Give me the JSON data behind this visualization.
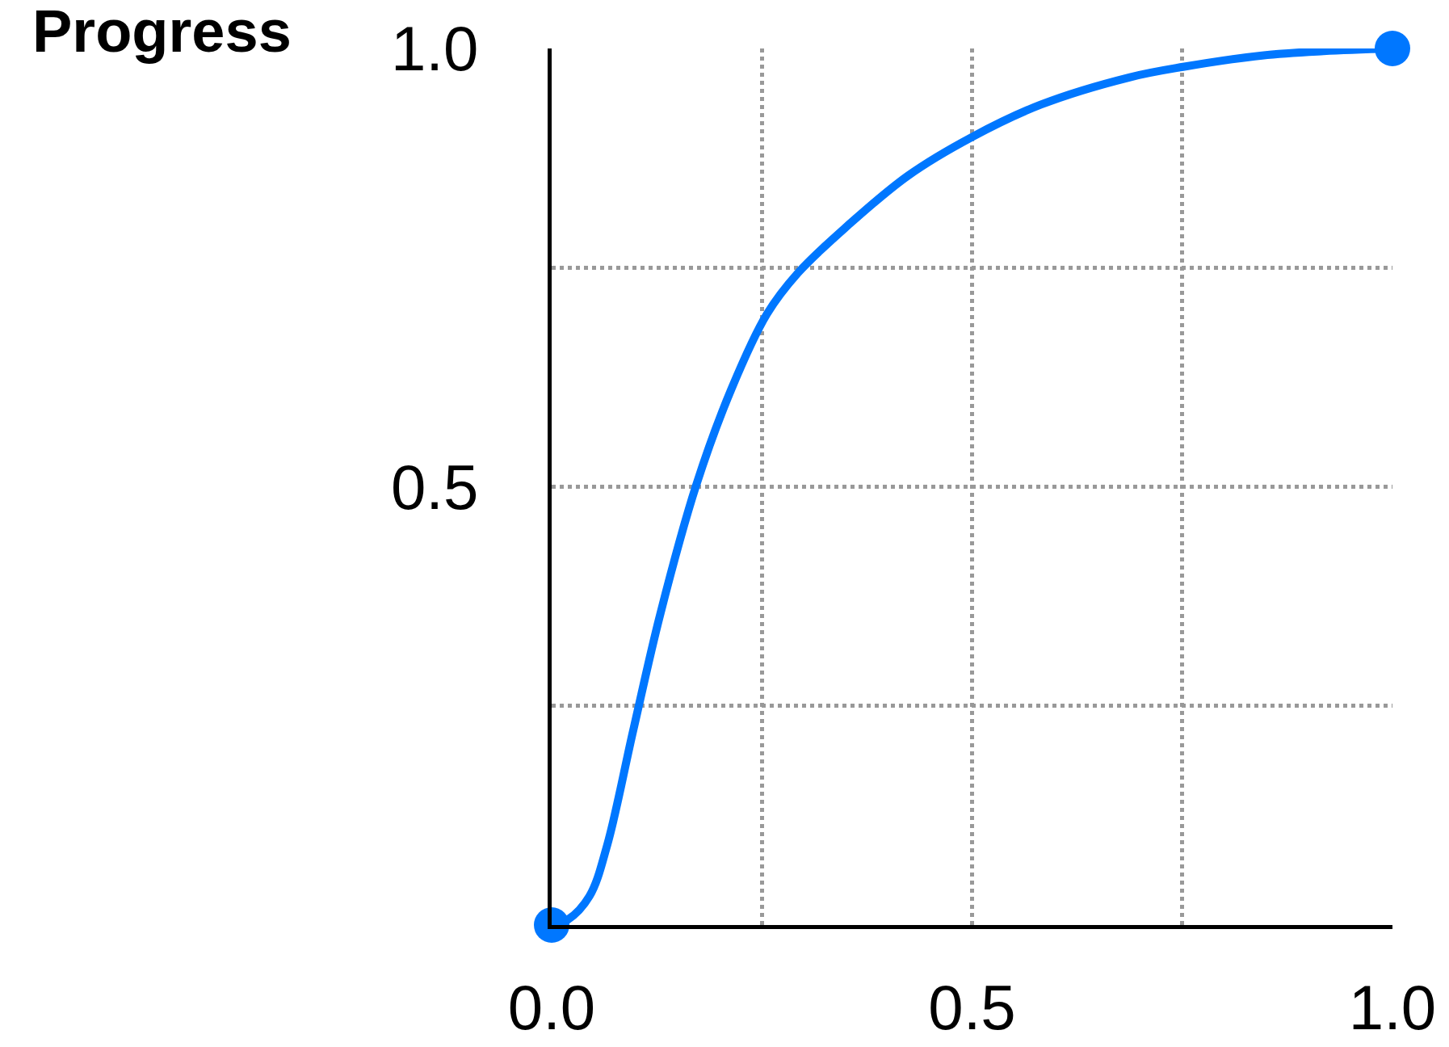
{
  "chart_data": {
    "type": "line",
    "ylabel": "Progress",
    "x": [
      0,
      0.019,
      0.045,
      0.066,
      0.097,
      0.129,
      0.172,
      0.214,
      0.256,
      0.293,
      0.351,
      0.424,
      0.5,
      0.582,
      0.687,
      0.751,
      0.845,
      0.918,
      1
    ],
    "series": [
      {
        "color": "#0077ff",
        "values": [
          0,
          0.006,
          0.033,
          0.091,
          0.222,
          0.354,
          0.502,
          0.612,
          0.697,
          0.744,
          0.797,
          0.855,
          0.899,
          0.936,
          0.967,
          0.979,
          0.992,
          0.997,
          1
        ]
      },
      {
        "type": "scatter",
        "color": "#0077ff",
        "marker": "circle",
        "x": [
          0,
          1
        ],
        "values": [
          0,
          1
        ]
      }
    ],
    "xlim": [
      0,
      1
    ],
    "ylim": [
      0,
      1
    ],
    "xticks": [
      {
        "value": 0,
        "label": "0.0"
      },
      {
        "value": 0.25,
        "label": null
      },
      {
        "value": 0.5,
        "label": "0.5"
      },
      {
        "value": 0.75,
        "label": null
      },
      {
        "value": 1,
        "label": "1.0"
      }
    ],
    "yticks": [
      {
        "value": 0.25,
        "label": null
      },
      {
        "value": 0.5,
        "label": "0.5"
      },
      {
        "value": 0.75,
        "label": null
      },
      {
        "value": 1,
        "label": "1.0"
      }
    ],
    "grid": true,
    "line_style": "solid"
  }
}
